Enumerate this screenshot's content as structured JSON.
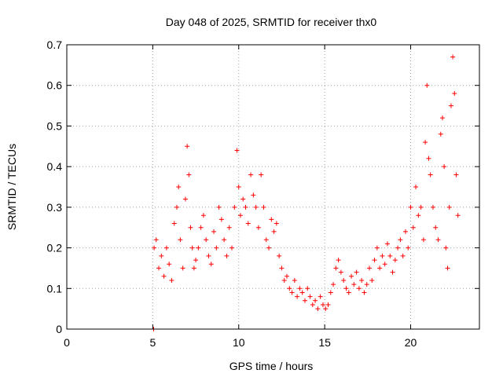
{
  "chart_data": {
    "type": "scatter",
    "title": "Day 048 of 2025, SRMTID for receiver thx0",
    "xlabel": "GPS time / hours",
    "ylabel": "SRMTID / TECUs",
    "xlim": [
      0,
      24
    ],
    "ylim": [
      0,
      0.7
    ],
    "xticks": [
      0,
      5,
      10,
      15,
      20
    ],
    "xtick_labels": [
      "0",
      "5",
      "10",
      "15",
      "20"
    ],
    "yticks": [
      0,
      0.1,
      0.2,
      0.3,
      0.4,
      0.5,
      0.6,
      0.7
    ],
    "ytick_labels": [
      "0",
      "0.1",
      "0.2",
      "0.3",
      "0.4",
      "0.5",
      "0.6",
      "0.7"
    ],
    "grid": true,
    "marker": "plus",
    "color": "#ff0000",
    "series": [
      {
        "name": "SRMTID",
        "x": [
          5.05,
          5.08,
          5.2,
          5.35,
          5.5,
          5.65,
          5.8,
          5.95,
          6.1,
          6.25,
          6.4,
          6.5,
          6.6,
          6.75,
          6.9,
          7.0,
          7.1,
          7.2,
          7.3,
          7.4,
          7.5,
          7.65,
          7.8,
          7.95,
          8.1,
          8.25,
          8.4,
          8.55,
          8.7,
          8.85,
          9.0,
          9.15,
          9.3,
          9.45,
          9.6,
          9.75,
          9.9,
          10.0,
          10.1,
          10.25,
          10.4,
          10.55,
          10.7,
          10.85,
          11.0,
          11.15,
          11.3,
          11.45,
          11.6,
          11.75,
          11.9,
          12.05,
          12.2,
          12.35,
          12.5,
          12.65,
          12.8,
          12.95,
          13.1,
          13.25,
          13.4,
          13.55,
          13.7,
          13.85,
          14.0,
          14.15,
          14.3,
          14.45,
          14.6,
          14.75,
          14.9,
          15.05,
          15.2,
          15.35,
          15.5,
          15.65,
          15.8,
          15.95,
          16.1,
          16.25,
          16.4,
          16.55,
          16.7,
          16.85,
          17.0,
          17.15,
          17.3,
          17.45,
          17.6,
          17.75,
          17.9,
          18.05,
          18.2,
          18.35,
          18.5,
          18.65,
          18.8,
          18.95,
          19.1,
          19.25,
          19.4,
          19.55,
          19.7,
          19.85,
          20.0,
          20.15,
          20.3,
          20.45,
          20.6,
          20.75,
          20.85,
          20.95,
          21.05,
          21.15,
          21.3,
          21.45,
          21.6,
          21.75,
          21.85,
          21.95,
          22.05,
          22.15,
          22.25,
          22.35,
          22.45,
          22.55,
          22.65,
          22.75
        ],
        "y": [
          0.0,
          0.2,
          0.22,
          0.15,
          0.18,
          0.13,
          0.2,
          0.16,
          0.12,
          0.26,
          0.3,
          0.35,
          0.22,
          0.15,
          0.32,
          0.45,
          0.38,
          0.25,
          0.2,
          0.15,
          0.17,
          0.2,
          0.25,
          0.28,
          0.22,
          0.18,
          0.16,
          0.24,
          0.2,
          0.3,
          0.27,
          0.22,
          0.18,
          0.25,
          0.2,
          0.3,
          0.44,
          0.35,
          0.28,
          0.32,
          0.3,
          0.26,
          0.38,
          0.33,
          0.3,
          0.25,
          0.38,
          0.3,
          0.22,
          0.2,
          0.27,
          0.24,
          0.26,
          0.18,
          0.15,
          0.12,
          0.13,
          0.1,
          0.09,
          0.12,
          0.08,
          0.1,
          0.09,
          0.07,
          0.1,
          0.08,
          0.06,
          0.07,
          0.05,
          0.08,
          0.06,
          0.05,
          0.06,
          0.09,
          0.11,
          0.15,
          0.17,
          0.14,
          0.12,
          0.1,
          0.09,
          0.13,
          0.11,
          0.14,
          0.1,
          0.12,
          0.09,
          0.11,
          0.15,
          0.12,
          0.17,
          0.2,
          0.15,
          0.18,
          0.16,
          0.21,
          0.18,
          0.14,
          0.17,
          0.2,
          0.22,
          0.18,
          0.24,
          0.2,
          0.3,
          0.25,
          0.35,
          0.28,
          0.3,
          0.22,
          0.46,
          0.6,
          0.42,
          0.38,
          0.3,
          0.25,
          0.22,
          0.48,
          0.52,
          0.4,
          0.2,
          0.15,
          0.3,
          0.55,
          0.67,
          0.58,
          0.38,
          0.28
        ]
      }
    ]
  }
}
